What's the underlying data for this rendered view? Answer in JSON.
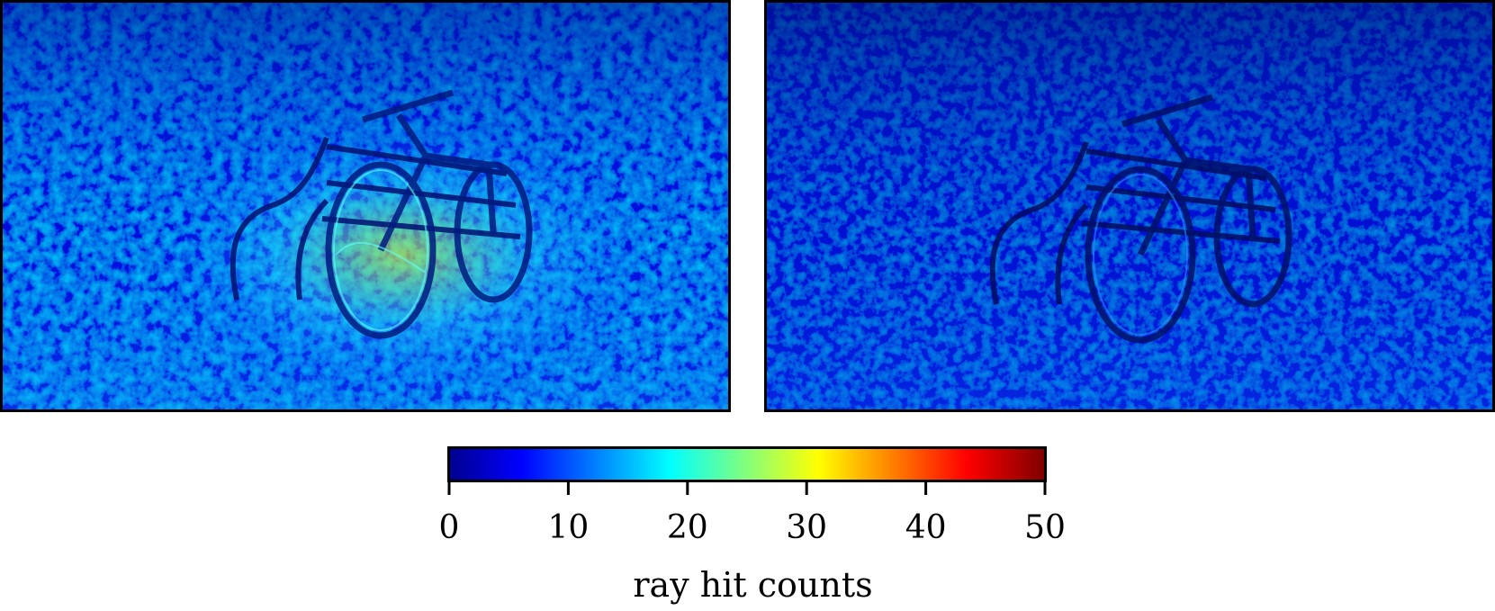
{
  "chart_data": {
    "type": "heatmap",
    "panels": 2,
    "colormap": "jet",
    "colors": {
      "dark_blue": "#00008f",
      "blue": "#0000ff",
      "cyan": "#00ffff",
      "yellow": "#ffff00",
      "red": "#ff0000",
      "dark_red": "#800000"
    },
    "colorbar": {
      "range": [
        0,
        50
      ],
      "ticks": [
        0,
        10,
        20,
        30,
        40,
        50
      ],
      "tick_labels": [
        "0",
        "10",
        "20",
        "30",
        "40",
        "50"
      ],
      "label": "ray hit counts"
    }
  }
}
